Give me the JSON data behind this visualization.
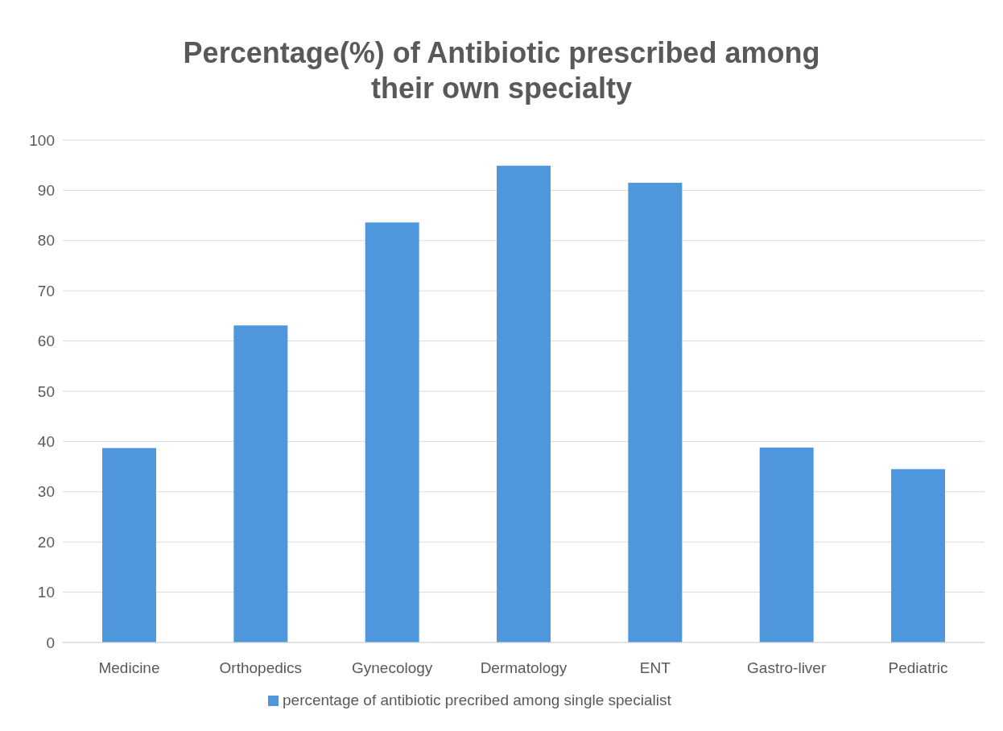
{
  "chart_data": {
    "type": "bar",
    "title": "Percentage(%) of Antibiotic prescribed among their own  specialty",
    "categories": [
      "Medicine",
      "Orthopedics",
      "Gynecology",
      "Dermatology",
      "ENT",
      "Gastro-liver",
      "Pediatric"
    ],
    "series": [
      {
        "name": "percentage of antibiotic precribed among single specialist",
        "color": "#4f97dc",
        "values": [
          38.7,
          63.1,
          83.6,
          94.9,
          91.5,
          38.8,
          34.5
        ]
      }
    ],
    "ylim": [
      0,
      100
    ],
    "yticks": [
      0,
      10,
      20,
      30,
      40,
      50,
      60,
      70,
      80,
      90,
      100
    ],
    "grid": "y",
    "legend": "bottom"
  }
}
